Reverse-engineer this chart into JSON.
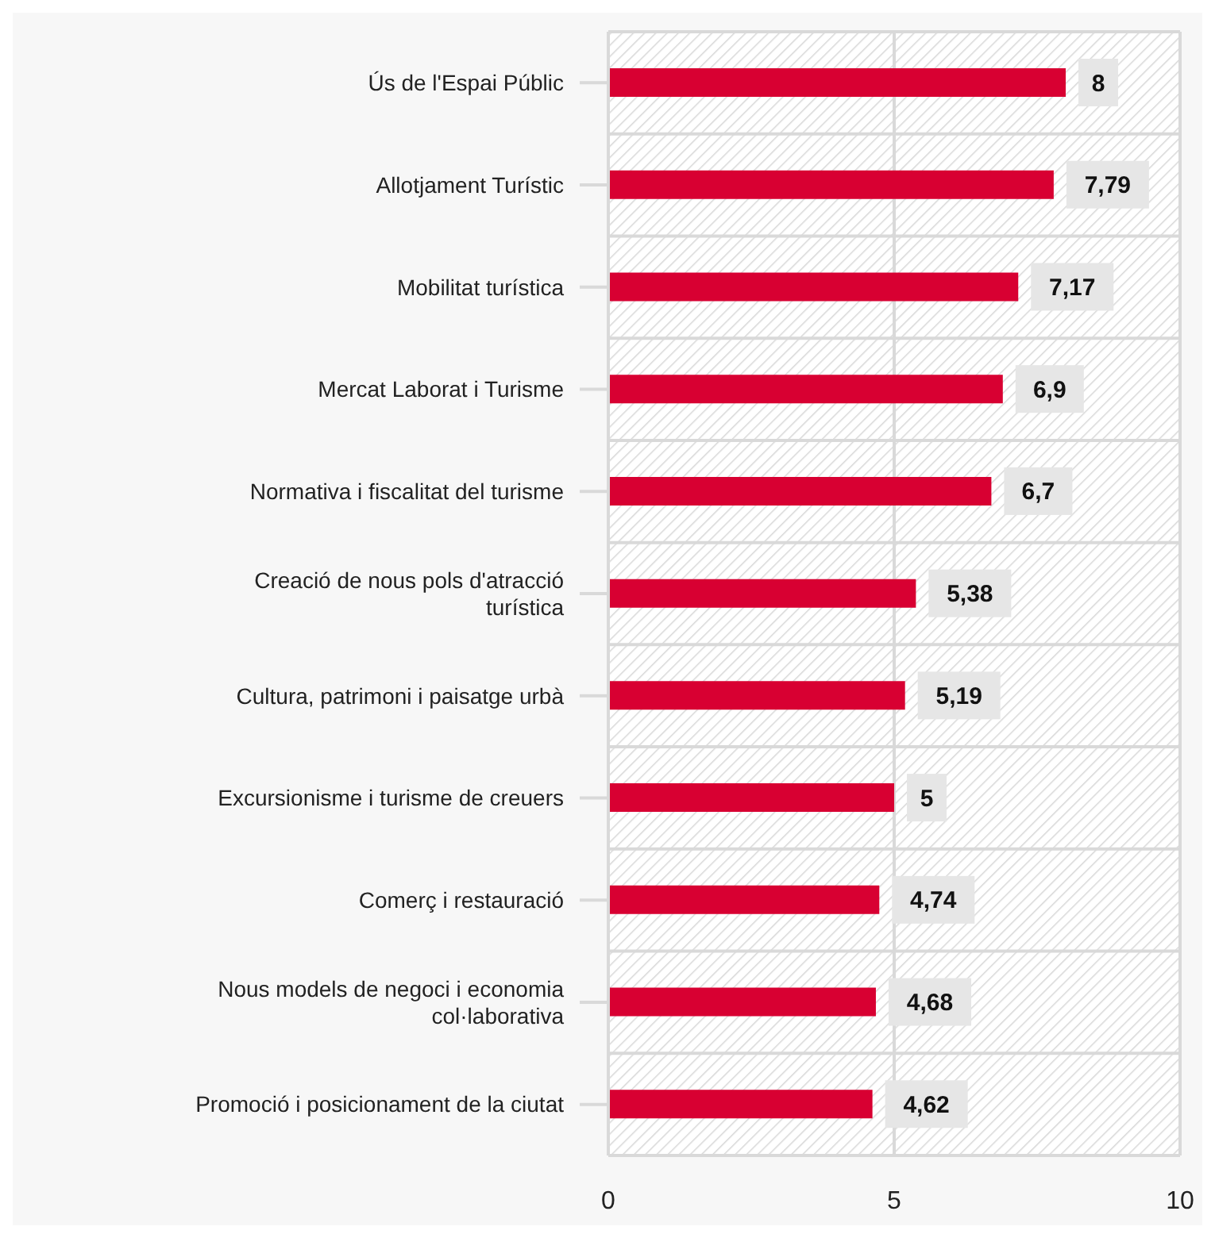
{
  "chart_data": {
    "type": "bar",
    "orientation": "horizontal",
    "categories": [
      "Ús de l'Espai Públic",
      "Allotjament Turístic",
      "Mobilitat turística",
      "Mercat Laborat i Turisme",
      "Normativa i fiscalitat del turisme",
      "Creació de nous pols d'atracció turística",
      "Cultura, patrimoni i paisatge urbà",
      "Excursionisme i turisme de creuers",
      "Comerç i restauració",
      "Nous models de negoci i economia col·laborativa",
      "Promoció i posicionament de la ciutat"
    ],
    "values": [
      8,
      7.79,
      7.17,
      6.9,
      6.7,
      5.38,
      5.19,
      5,
      4.74,
      4.68,
      4.62
    ],
    "value_labels": [
      "8",
      "7,79",
      "7,17",
      "6,9",
      "6,7",
      "5,38",
      "5,19",
      "5",
      "4,74",
      "4,68",
      "4,62"
    ],
    "color": "#d80032",
    "xlim": [
      0,
      10
    ],
    "xticks": [
      0,
      5,
      10
    ],
    "grid": true
  }
}
